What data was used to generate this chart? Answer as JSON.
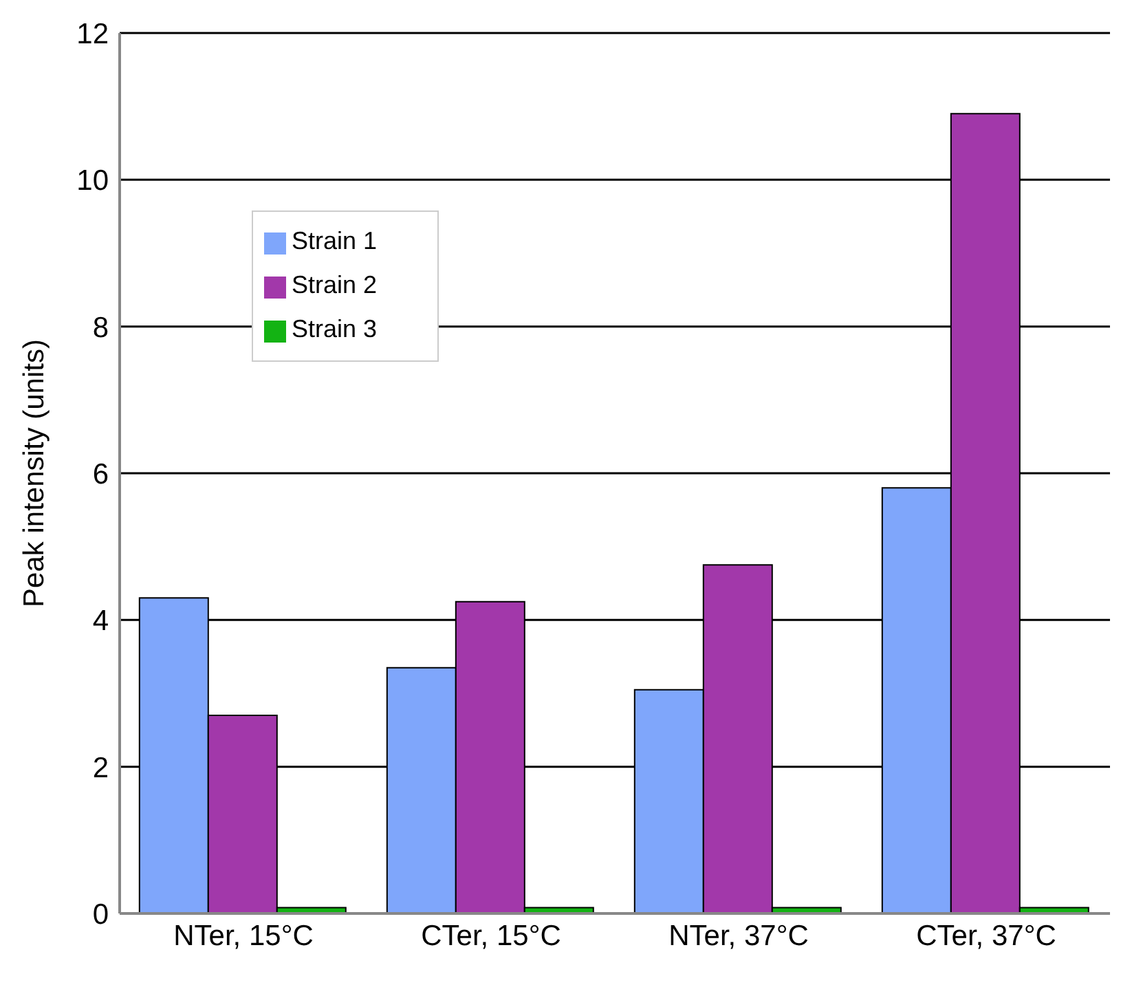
{
  "chart_data": {
    "type": "bar",
    "ylabel": "Peak intensity (units)",
    "categories": [
      "NTer, 15°C",
      "CTer, 15°C",
      "NTer, 37°C",
      "CTer, 37°C"
    ],
    "series": [
      {
        "name": "Strain 1",
        "color": "#7fa6fb",
        "values": [
          4.3,
          3.35,
          3.05,
          5.8
        ]
      },
      {
        "name": "Strain 2",
        "color": "#a238aa",
        "values": [
          2.7,
          4.25,
          4.75,
          10.9
        ]
      },
      {
        "name": "Strain 3",
        "color": "#13b313",
        "values": [
          0.08,
          0.08,
          0.08,
          0.08
        ]
      }
    ],
    "ylim": [
      0,
      12
    ],
    "yticks": [
      0,
      2,
      4,
      6,
      8,
      10,
      12
    ],
    "grid": "y",
    "legend": "top left"
  }
}
